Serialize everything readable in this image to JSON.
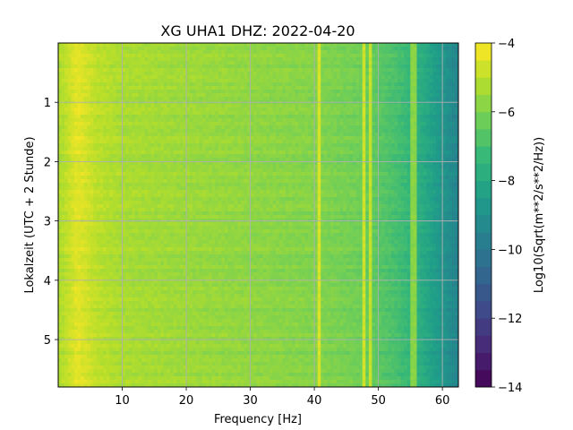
{
  "chart_data": {
    "type": "heatmap",
    "title": "XG UHA1  DHZ: 2022-04-20",
    "xlabel": "Frequency [Hz]",
    "ylabel": "Lokalzeit (UTC + 2 Stunde)",
    "colorbar_label": "Log10(Sqrt(m**2/s**2/Hz))",
    "xlim": [
      0,
      62.5
    ],
    "ylim": [
      5.8,
      0
    ],
    "y_axis_inverted": true,
    "x_ticks": [
      10,
      20,
      30,
      40,
      50,
      60
    ],
    "y_ticks": [
      1,
      2,
      3,
      4,
      5
    ],
    "x_tick_labels": [
      "10",
      "20",
      "30",
      "40",
      "50",
      "60"
    ],
    "y_tick_labels": [
      "1",
      "2",
      "3",
      "4",
      "5"
    ],
    "colorbar_range": [
      -14,
      -4
    ],
    "colorbar_ticks": [
      -4,
      -6,
      -8,
      -10,
      -12,
      -14
    ],
    "colorbar_tick_labels": [
      "−4",
      "−6",
      "−8",
      "−10",
      "−12",
      "−14"
    ],
    "colormap": "viridis",
    "grid": true,
    "approx_level_by_frequency_hz": [
      {
        "f": 0.5,
        "level": -5.2
      },
      {
        "f": 3,
        "level": -4.4
      },
      {
        "f": 6,
        "level": -5.0
      },
      {
        "f": 10,
        "level": -5.3
      },
      {
        "f": 20,
        "level": -5.5
      },
      {
        "f": 30,
        "level": -5.7
      },
      {
        "f": 40,
        "level": -5.9
      },
      {
        "f": 47,
        "level": -6.2
      },
      {
        "f": 50,
        "level": -6.6
      },
      {
        "f": 53,
        "level": -7.0
      },
      {
        "f": 56,
        "level": -7.6
      },
      {
        "f": 59,
        "level": -8.5
      },
      {
        "f": 62.5,
        "level": -9.5
      }
    ],
    "narrow_lines": [
      {
        "f": 40.8,
        "level": -4.6
      },
      {
        "f": 47.8,
        "level": -4.7
      },
      {
        "f": 48.6,
        "level": -4.9
      },
      {
        "f": 55.5,
        "level": -5.8
      }
    ]
  }
}
